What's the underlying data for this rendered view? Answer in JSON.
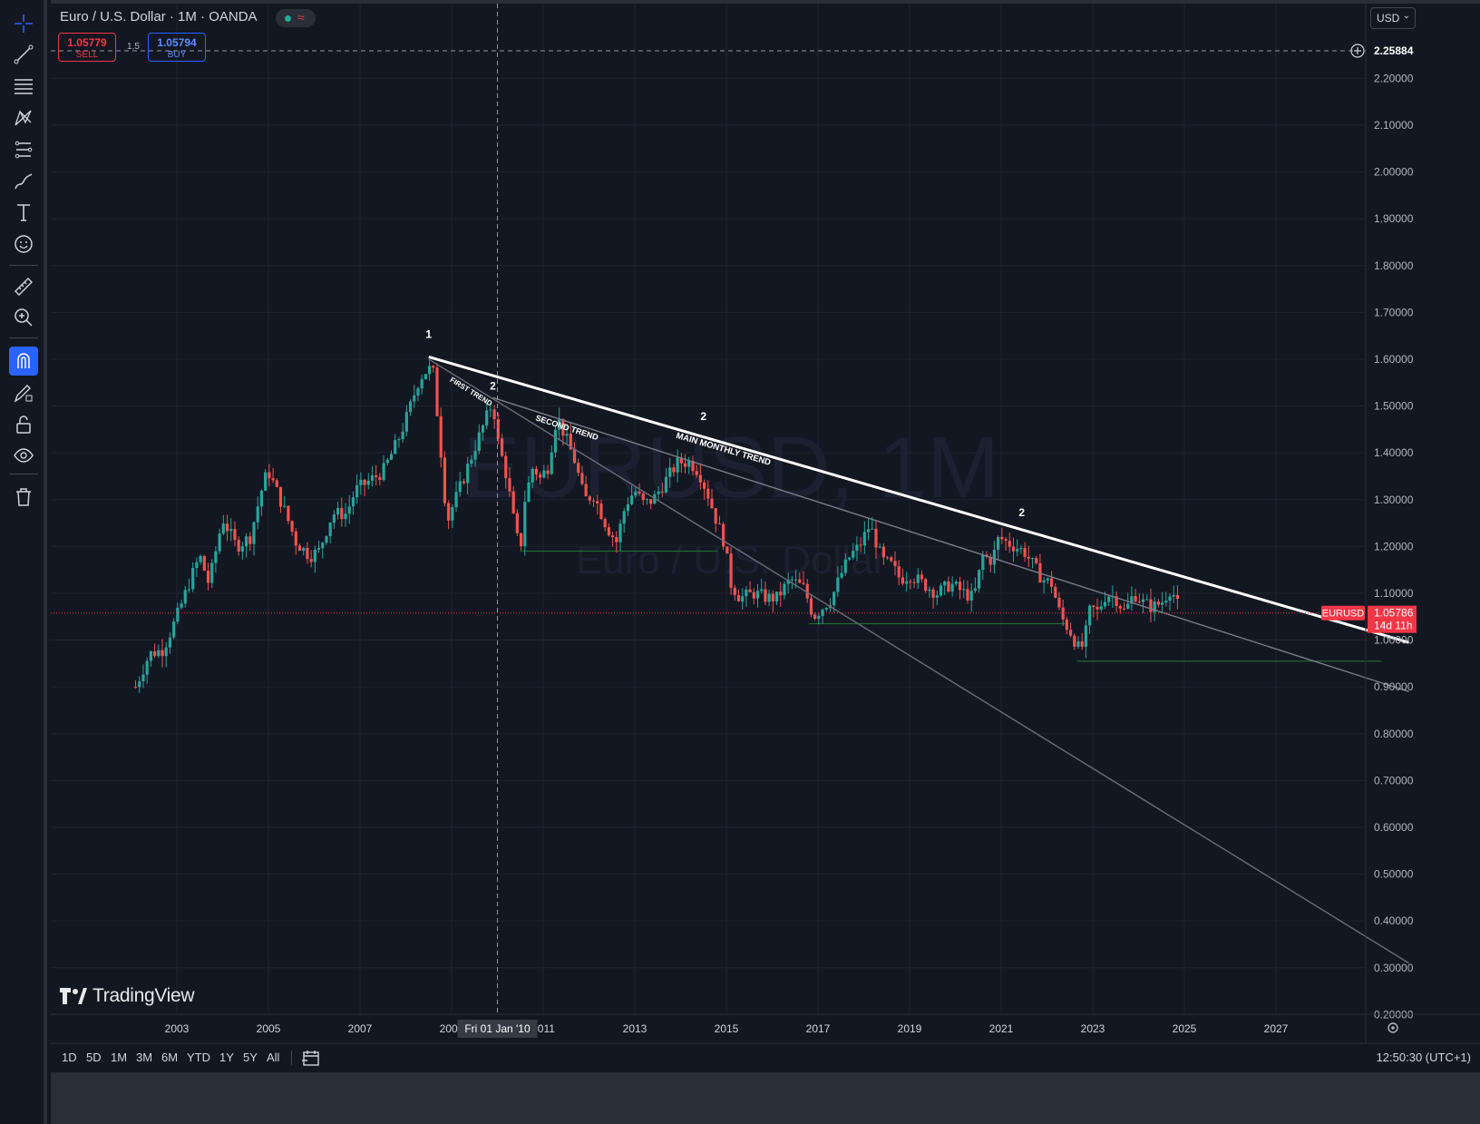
{
  "header": {
    "title": "Euro / U.S. Dollar · 1M · OANDA",
    "sell": {
      "price": "1.05779",
      "label": "SELL"
    },
    "buy": {
      "price": "1.05794",
      "label": "BUY"
    },
    "spread": "1.5",
    "currency": "USD",
    "crosshair_price": "2.25884"
  },
  "tools": [
    "crosshair-icon",
    "trend-line-icon",
    "fib-retracement-icon",
    "pattern-icon",
    "projection-icon",
    "brush-icon",
    "text-icon",
    "emoji-icon",
    "ruler-icon",
    "zoom-in-icon",
    "magnet-icon",
    "lock-drawing-icon",
    "lock-icon",
    "eye-icon",
    "trash-icon"
  ],
  "watermark": {
    "symbol": "EURUSD, 1M",
    "name": "Euro / U.S. Dollar"
  },
  "chart_data": {
    "type": "candlestick",
    "symbol": "EURUSD",
    "last_price": "1.05786",
    "countdown": "14d 11h",
    "crosshair_date_label": "Fri 01 Jan '10",
    "y_axis": {
      "min": 0.2,
      "max": 2.26,
      "ticks": [
        "2.20000",
        "2.10000",
        "2.00000",
        "1.90000",
        "1.80000",
        "1.70000",
        "1.60000",
        "1.50000",
        "1.40000",
        "1.30000",
        "1.20000",
        "1.10000",
        "1.00000",
        "0.90000",
        "0.80000",
        "0.70000",
        "0.60000",
        "0.50000",
        "0.40000",
        "0.30000",
        "0.20000"
      ]
    },
    "x_axis": {
      "min": 2002.0,
      "max": 2029.9,
      "ticks": [
        "2003",
        "2005",
        "2007",
        "2009",
        "2011",
        "2013",
        "2015",
        "2017",
        "2019",
        "2021",
        "2023",
        "2025",
        "2027"
      ]
    },
    "monthly_close_path": [
      [
        2002.1,
        0.9
      ],
      [
        2002.4,
        0.97
      ],
      [
        2002.7,
        0.98
      ],
      [
        2003.0,
        1.05
      ],
      [
        2003.3,
        1.13
      ],
      [
        2003.5,
        1.18
      ],
      [
        2003.7,
        1.12
      ],
      [
        2004.0,
        1.26
      ],
      [
        2004.3,
        1.2
      ],
      [
        2004.6,
        1.22
      ],
      [
        2004.9,
        1.34
      ],
      [
        2005.0,
        1.36
      ],
      [
        2005.3,
        1.29
      ],
      [
        2005.6,
        1.21
      ],
      [
        2005.9,
        1.18
      ],
      [
        2006.1,
        1.19
      ],
      [
        2006.4,
        1.27
      ],
      [
        2006.7,
        1.27
      ],
      [
        2006.9,
        1.32
      ],
      [
        2007.2,
        1.34
      ],
      [
        2007.5,
        1.36
      ],
      [
        2007.8,
        1.42
      ],
      [
        2008.0,
        1.47
      ],
      [
        2008.3,
        1.56
      ],
      [
        2008.5,
        1.58
      ],
      [
        2008.6,
        1.57
      ],
      [
        2008.75,
        1.42
      ],
      [
        2008.9,
        1.25
      ],
      [
        2009.0,
        1.28
      ],
      [
        2009.2,
        1.33
      ],
      [
        2009.5,
        1.41
      ],
      [
        2009.7,
        1.46
      ],
      [
        2009.9,
        1.51
      ],
      [
        2010.0,
        1.43
      ],
      [
        2010.2,
        1.35
      ],
      [
        2010.4,
        1.23
      ],
      [
        2010.5,
        1.19
      ],
      [
        2010.6,
        1.3
      ],
      [
        2010.8,
        1.38
      ],
      [
        2010.9,
        1.34
      ],
      [
        2011.1,
        1.37
      ],
      [
        2011.3,
        1.48
      ],
      [
        2011.5,
        1.43
      ],
      [
        2011.7,
        1.38
      ],
      [
        2011.9,
        1.3
      ],
      [
        2012.1,
        1.31
      ],
      [
        2012.4,
        1.24
      ],
      [
        2012.6,
        1.21
      ],
      [
        2012.8,
        1.29
      ],
      [
        2013.0,
        1.32
      ],
      [
        2013.2,
        1.29
      ],
      [
        2013.4,
        1.3
      ],
      [
        2013.6,
        1.33
      ],
      [
        2013.8,
        1.36
      ],
      [
        2013.95,
        1.38
      ],
      [
        2014.2,
        1.38
      ],
      [
        2014.4,
        1.36
      ],
      [
        2014.6,
        1.31
      ],
      [
        2014.8,
        1.25
      ],
      [
        2014.95,
        1.21
      ],
      [
        2015.1,
        1.12
      ],
      [
        2015.3,
        1.09
      ],
      [
        2015.6,
        1.1
      ],
      [
        2015.9,
        1.09
      ],
      [
        2016.1,
        1.09
      ],
      [
        2016.4,
        1.13
      ],
      [
        2016.7,
        1.11
      ],
      [
        2016.9,
        1.05
      ],
      [
        2017.1,
        1.07
      ],
      [
        2017.3,
        1.09
      ],
      [
        2017.5,
        1.14
      ],
      [
        2017.7,
        1.18
      ],
      [
        2017.9,
        1.2
      ],
      [
        2018.1,
        1.24
      ],
      [
        2018.2,
        1.23
      ],
      [
        2018.4,
        1.17
      ],
      [
        2018.6,
        1.16
      ],
      [
        2018.8,
        1.13
      ],
      [
        2019.0,
        1.14
      ],
      [
        2019.3,
        1.12
      ],
      [
        2019.6,
        1.1
      ],
      [
        2019.9,
        1.12
      ],
      [
        2020.2,
        1.1
      ],
      [
        2020.4,
        1.09
      ],
      [
        2020.6,
        1.18
      ],
      [
        2020.8,
        1.17
      ],
      [
        2020.95,
        1.22
      ],
      [
        2021.1,
        1.21
      ],
      [
        2021.3,
        1.2
      ],
      [
        2021.5,
        1.19
      ],
      [
        2021.7,
        1.16
      ],
      [
        2021.9,
        1.13
      ],
      [
        2022.1,
        1.12
      ],
      [
        2022.3,
        1.05
      ],
      [
        2022.5,
        1.02
      ],
      [
        2022.7,
        0.98
      ],
      [
        2022.8,
        0.99
      ],
      [
        2022.95,
        1.07
      ],
      [
        2023.1,
        1.06
      ],
      [
        2023.3,
        1.1
      ],
      [
        2023.5,
        1.09
      ],
      [
        2023.7,
        1.06
      ],
      [
        2023.9,
        1.1
      ],
      [
        2024.1,
        1.08
      ],
      [
        2024.3,
        1.07
      ],
      [
        2024.5,
        1.08
      ],
      [
        2024.7,
        1.11
      ],
      [
        2024.8,
        1.09
      ],
      [
        2024.9,
        1.06
      ]
    ],
    "drawings": {
      "main_trend": {
        "label": "MAIN MONTHLY TREND",
        "from": [
          2008.5,
          1.605
        ],
        "to": [
          2029.9,
          0.995
        ]
      },
      "second_trend": {
        "label": "SECOND TREND",
        "from": [
          2009.9,
          1.518
        ],
        "to": [
          2029.9,
          0.89
        ]
      },
      "first_trend": {
        "label": "FIRST TREND",
        "from": [
          2008.5,
          1.6
        ],
        "to": [
          2029.9,
          0.31
        ]
      },
      "supports": [
        {
          "from": [
            2010.5,
            1.19
          ],
          "to": [
            2014.8,
            1.19
          ]
        },
        {
          "from": [
            2016.8,
            1.035
          ],
          "to": [
            2022.4,
            1.035
          ]
        },
        {
          "from": [
            2022.65,
            0.955
          ],
          "to": [
            2029.3,
            0.955
          ]
        }
      ],
      "wave_labels": [
        {
          "text": "1",
          "at": [
            2008.5,
            1.645
          ]
        },
        {
          "text": "2",
          "at": [
            2009.9,
            1.535
          ]
        },
        {
          "text": "2",
          "at": [
            2014.5,
            1.47
          ]
        },
        {
          "text": "2",
          "at": [
            2021.45,
            1.265
          ]
        }
      ]
    }
  },
  "bottom": {
    "timeframes": [
      "1D",
      "5D",
      "1M",
      "3M",
      "6M",
      "YTD",
      "1Y",
      "5Y",
      "All"
    ],
    "clock": "12:50:30 (UTC+1)"
  },
  "branding": {
    "logo_text": "TradingView"
  },
  "colors": {
    "up": "#26a69a",
    "down": "#ef5350",
    "bg": "#131722",
    "grid": "#1f2330",
    "accent": "#2962ff",
    "price_tag": "#f23645"
  }
}
